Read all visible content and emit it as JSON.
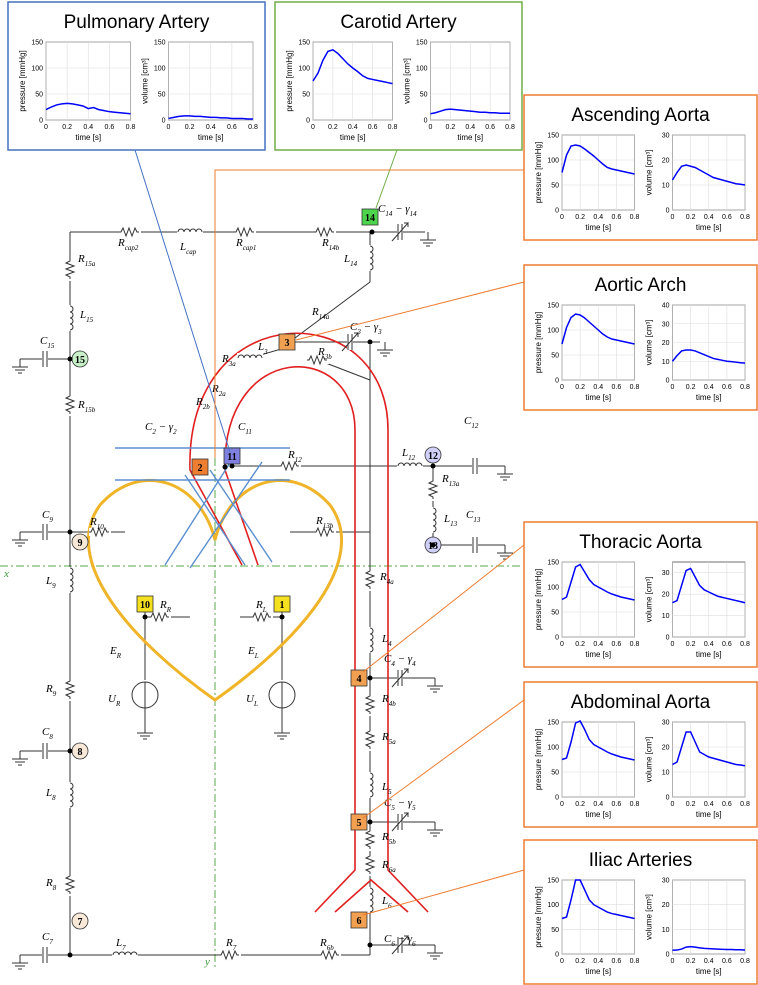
{
  "panels": [
    {
      "title": "Pulmonary Artery"
    },
    {
      "title": "Carotid Artery"
    },
    {
      "title": "Ascending Aorta"
    },
    {
      "title": "Aortic Arch"
    },
    {
      "title": "Thoracic Aorta"
    },
    {
      "title": "Abdominal Aorta"
    },
    {
      "title": "Iliac Arteries"
    }
  ],
  "chart_data": [
    {
      "type": "line",
      "xlabel": "time [s]",
      "ylabel": "pressure [mmHg]",
      "color": "#0000ff",
      "grid": true,
      "x": [
        0,
        0.05,
        0.1,
        0.15,
        0.2,
        0.25,
        0.3,
        0.35,
        0.4,
        0.45,
        0.5,
        0.55,
        0.6,
        0.65,
        0.7,
        0.75,
        0.8
      ],
      "values": [
        20,
        25,
        29,
        31,
        32,
        31,
        29,
        27,
        22,
        24,
        20,
        18,
        16,
        15,
        14,
        13,
        12
      ],
      "xlim": [
        0,
        0.8
      ],
      "ylim": [
        0,
        150
      ],
      "xticks": [
        0,
        0.2,
        0.4,
        0.6,
        0.8
      ],
      "yticks": [
        0,
        50,
        100,
        150
      ]
    },
    {
      "type": "line",
      "xlabel": "time [s]",
      "ylabel": "volume [cm³]",
      "color": "#0000ff",
      "grid": true,
      "x": [
        0,
        0.05,
        0.1,
        0.15,
        0.2,
        0.25,
        0.3,
        0.35,
        0.4,
        0.45,
        0.5,
        0.55,
        0.6,
        0.65,
        0.7,
        0.75,
        0.8
      ],
      "values": [
        3,
        5,
        7,
        8,
        8,
        7,
        7,
        6,
        5,
        5,
        4,
        4,
        3,
        3,
        3,
        2,
        2
      ],
      "xlim": [
        0,
        0.8
      ],
      "ylim": [
        0,
        150
      ],
      "xticks": [
        0,
        0.2,
        0.4,
        0.6,
        0.8
      ],
      "yticks": [
        0,
        50,
        100,
        150
      ]
    },
    {
      "type": "line",
      "xlabel": "time [s]",
      "ylabel": "pressure [mmHg]",
      "color": "#0000ff",
      "grid": true,
      "x": [
        0,
        0.05,
        0.1,
        0.15,
        0.2,
        0.25,
        0.3,
        0.35,
        0.4,
        0.45,
        0.5,
        0.55,
        0.6,
        0.65,
        0.7,
        0.75,
        0.8
      ],
      "values": [
        75,
        90,
        115,
        132,
        135,
        128,
        118,
        108,
        100,
        93,
        85,
        80,
        78,
        76,
        74,
        72,
        70
      ],
      "xlim": [
        0,
        0.8
      ],
      "ylim": [
        0,
        150
      ],
      "xticks": [
        0,
        0.2,
        0.4,
        0.6,
        0.8
      ],
      "yticks": [
        0,
        50,
        100,
        150
      ]
    },
    {
      "type": "line",
      "xlabel": "time [s]",
      "ylabel": "volume [cm³]",
      "color": "#0000ff",
      "grid": true,
      "x": [
        0,
        0.05,
        0.1,
        0.15,
        0.2,
        0.25,
        0.3,
        0.35,
        0.4,
        0.45,
        0.5,
        0.55,
        0.6,
        0.65,
        0.7,
        0.75,
        0.8
      ],
      "values": [
        12,
        14,
        17,
        20,
        21,
        20,
        19,
        18,
        17,
        16,
        15,
        15,
        14,
        14,
        13,
        13,
        13
      ],
      "xlim": [
        0,
        0.8
      ],
      "ylim": [
        0,
        150
      ],
      "xticks": [
        0,
        0.2,
        0.4,
        0.6,
        0.8
      ],
      "yticks": [
        0,
        50,
        100,
        150
      ]
    },
    {
      "type": "line",
      "xlabel": "time [s]",
      "ylabel": "pressure [mmHg]",
      "color": "#0000ff",
      "grid": true,
      "x": [
        0,
        0.05,
        0.1,
        0.15,
        0.2,
        0.25,
        0.3,
        0.35,
        0.4,
        0.45,
        0.5,
        0.55,
        0.6,
        0.65,
        0.7,
        0.75,
        0.8
      ],
      "values": [
        75,
        110,
        128,
        130,
        128,
        122,
        115,
        108,
        100,
        92,
        85,
        82,
        80,
        78,
        76,
        74,
        72
      ],
      "xlim": [
        0,
        0.8
      ],
      "ylim": [
        0,
        150
      ],
      "xticks": [
        0,
        0.2,
        0.4,
        0.6,
        0.8
      ],
      "yticks": [
        0,
        50,
        100,
        150
      ]
    },
    {
      "type": "line",
      "xlabel": "time [s]",
      "ylabel": "volume [cm³]",
      "color": "#0000ff",
      "grid": true,
      "x": [
        0,
        0.05,
        0.1,
        0.15,
        0.2,
        0.25,
        0.3,
        0.35,
        0.4,
        0.45,
        0.5,
        0.55,
        0.6,
        0.65,
        0.7,
        0.75,
        0.8
      ],
      "values": [
        12,
        15,
        17.5,
        18,
        17.5,
        17,
        16,
        15,
        14,
        13,
        12.5,
        12,
        11.5,
        11,
        10.5,
        10.3,
        10
      ],
      "xlim": [
        0,
        0.8
      ],
      "ylim": [
        0,
        30
      ],
      "xticks": [
        0,
        0.2,
        0.4,
        0.6,
        0.8
      ],
      "yticks": [
        0,
        10,
        20,
        30
      ]
    },
    {
      "type": "line",
      "xlabel": "time [s]",
      "ylabel": "pressure [mmHg]",
      "color": "#0000ff",
      "grid": true,
      "x": [
        0,
        0.05,
        0.1,
        0.15,
        0.2,
        0.25,
        0.3,
        0.35,
        0.4,
        0.45,
        0.5,
        0.55,
        0.6,
        0.65,
        0.7,
        0.75,
        0.8
      ],
      "values": [
        72,
        105,
        125,
        132,
        130,
        124,
        116,
        108,
        100,
        92,
        86,
        82,
        80,
        78,
        76,
        74,
        72
      ],
      "xlim": [
        0,
        0.8
      ],
      "ylim": [
        0,
        150
      ],
      "xticks": [
        0,
        0.2,
        0.4,
        0.6,
        0.8
      ],
      "yticks": [
        0,
        50,
        100,
        150
      ]
    },
    {
      "type": "line",
      "xlabel": "time [s]",
      "ylabel": "volume [cm³]",
      "color": "#0000ff",
      "grid": true,
      "x": [
        0,
        0.05,
        0.1,
        0.15,
        0.2,
        0.25,
        0.3,
        0.35,
        0.4,
        0.45,
        0.5,
        0.55,
        0.6,
        0.65,
        0.7,
        0.75,
        0.8
      ],
      "values": [
        10,
        13,
        15.5,
        16,
        16,
        15.5,
        14.5,
        13.5,
        12.5,
        11.5,
        11,
        10.5,
        10,
        9.8,
        9.5,
        9.2,
        9
      ],
      "xlim": [
        0,
        0.8
      ],
      "ylim": [
        0,
        40
      ],
      "xticks": [
        0,
        0.2,
        0.4,
        0.6,
        0.8
      ],
      "yticks": [
        0,
        10,
        20,
        30,
        40
      ]
    },
    {
      "type": "line",
      "xlabel": "time [s]",
      "ylabel": "pressure [mmHg]",
      "color": "#0000ff",
      "grid": true,
      "x": [
        0,
        0.05,
        0.1,
        0.15,
        0.2,
        0.25,
        0.3,
        0.35,
        0.4,
        0.45,
        0.5,
        0.55,
        0.6,
        0.65,
        0.7,
        0.75,
        0.8
      ],
      "values": [
        75,
        80,
        110,
        140,
        145,
        130,
        115,
        105,
        100,
        95,
        90,
        86,
        83,
        80,
        78,
        76,
        74
      ],
      "xlim": [
        0,
        0.8
      ],
      "ylim": [
        0,
        150
      ],
      "xticks": [
        0,
        0.2,
        0.4,
        0.6,
        0.8
      ],
      "yticks": [
        0,
        50,
        100,
        150
      ]
    },
    {
      "type": "line",
      "xlabel": "time [s]",
      "ylabel": "volume [cm³]",
      "color": "#0000ff",
      "grid": true,
      "x": [
        0,
        0.05,
        0.1,
        0.15,
        0.2,
        0.25,
        0.3,
        0.35,
        0.4,
        0.45,
        0.5,
        0.55,
        0.6,
        0.65,
        0.7,
        0.75,
        0.8
      ],
      "values": [
        16,
        17,
        24,
        31,
        32,
        28,
        24,
        22,
        21,
        20,
        19,
        18.5,
        18,
        17.5,
        17,
        16.5,
        16
      ],
      "xlim": [
        0,
        0.8
      ],
      "ylim": [
        0,
        35
      ],
      "xticks": [
        0,
        0.2,
        0.4,
        0.6,
        0.8
      ],
      "yticks": [
        0,
        10,
        20,
        30
      ]
    },
    {
      "type": "line",
      "xlabel": "time [s]",
      "ylabel": "pressure [mmHg]",
      "color": "#0000ff",
      "grid": true,
      "x": [
        0,
        0.05,
        0.1,
        0.15,
        0.2,
        0.25,
        0.3,
        0.35,
        0.4,
        0.45,
        0.5,
        0.55,
        0.6,
        0.65,
        0.7,
        0.75,
        0.8
      ],
      "values": [
        75,
        78,
        110,
        148,
        152,
        135,
        115,
        105,
        100,
        95,
        90,
        86,
        83,
        80,
        78,
        76,
        74
      ],
      "xlim": [
        0,
        0.8
      ],
      "ylim": [
        0,
        150
      ],
      "xticks": [
        0,
        0.2,
        0.4,
        0.6,
        0.8
      ],
      "yticks": [
        0,
        50,
        100,
        150
      ]
    },
    {
      "type": "line",
      "xlabel": "time [s]",
      "ylabel": "volume [cm³]",
      "color": "#0000ff",
      "grid": true,
      "x": [
        0,
        0.05,
        0.1,
        0.15,
        0.2,
        0.25,
        0.3,
        0.35,
        0.4,
        0.45,
        0.5,
        0.55,
        0.6,
        0.65,
        0.7,
        0.75,
        0.8
      ],
      "values": [
        13,
        14,
        20,
        26,
        26,
        22,
        18,
        17,
        16,
        15.5,
        15,
        14.5,
        14,
        13.5,
        13,
        12.8,
        12.5
      ],
      "xlim": [
        0,
        0.8
      ],
      "ylim": [
        0,
        30
      ],
      "xticks": [
        0,
        0.2,
        0.4,
        0.6,
        0.8
      ],
      "yticks": [
        0,
        10,
        20,
        30
      ]
    },
    {
      "type": "line",
      "xlabel": "time [s]",
      "ylabel": "pressure [mmHg]",
      "color": "#0000ff",
      "grid": true,
      "x": [
        0,
        0.05,
        0.1,
        0.15,
        0.2,
        0.25,
        0.3,
        0.35,
        0.4,
        0.45,
        0.5,
        0.55,
        0.6,
        0.65,
        0.7,
        0.75,
        0.8
      ],
      "values": [
        72,
        75,
        110,
        150,
        150,
        130,
        110,
        100,
        95,
        90,
        85,
        82,
        80,
        78,
        76,
        74,
        72
      ],
      "xlim": [
        0,
        0.8
      ],
      "ylim": [
        0,
        150
      ],
      "xticks": [
        0,
        0.2,
        0.4,
        0.6,
        0.8
      ],
      "yticks": [
        0,
        50,
        100,
        150
      ]
    },
    {
      "type": "line",
      "xlabel": "time [s]",
      "ylabel": "volume [cm³]",
      "color": "#0000ff",
      "grid": true,
      "x": [
        0,
        0.05,
        0.1,
        0.15,
        0.2,
        0.25,
        0.3,
        0.35,
        0.4,
        0.45,
        0.5,
        0.55,
        0.6,
        0.65,
        0.7,
        0.75,
        0.8
      ],
      "values": [
        1.5,
        1.6,
        2,
        2.8,
        3,
        2.8,
        2.5,
        2.3,
        2.2,
        2.1,
        2,
        1.9,
        1.8,
        1.8,
        1.7,
        1.7,
        1.6
      ],
      "xlim": [
        0,
        0.8
      ],
      "ylim": [
        0,
        30
      ],
      "xticks": [
        0,
        0.2,
        0.4,
        0.6,
        0.8
      ],
      "yticks": [
        0,
        10,
        20,
        30
      ]
    }
  ],
  "components": [
    [
      "R",
      "cap2"
    ],
    [
      "L",
      "cap"
    ],
    [
      "R",
      "cap1"
    ],
    [
      "R",
      "14b"
    ],
    [
      "C",
      "14",
      " − γ",
      "14"
    ],
    [
      "L",
      "14"
    ],
    [
      "R",
      "15a"
    ],
    [
      "L",
      "15"
    ],
    [
      "C",
      "15"
    ],
    [
      "R",
      "15b"
    ],
    [
      "R",
      "14a"
    ],
    [
      "C",
      "3",
      " − γ",
      "3"
    ],
    [
      "L",
      "3"
    ],
    [
      "R",
      "3a"
    ],
    [
      "R",
      "3b"
    ],
    [
      "R",
      "2a"
    ],
    [
      "R",
      "2b"
    ],
    [
      "C",
      "2",
      " − γ",
      "2"
    ],
    [
      "C",
      "11"
    ],
    [
      "R",
      "12"
    ],
    [
      "L",
      "12"
    ],
    [
      "C",
      "12"
    ],
    [
      "R",
      "13a"
    ],
    [
      "L",
      "13"
    ],
    [
      "C",
      "13"
    ],
    [
      "R",
      "13b"
    ],
    [
      "C",
      "9"
    ],
    [
      "R",
      "10"
    ],
    [
      "L",
      "9"
    ],
    [
      "R",
      "4a"
    ],
    [
      "R",
      "R"
    ],
    [
      "R",
      "L"
    ],
    [
      "E",
      "R"
    ],
    [
      "E",
      "L"
    ],
    [
      "U",
      "R"
    ],
    [
      "U",
      "L"
    ],
    [
      "L",
      "4"
    ],
    [
      "C",
      "4",
      " − γ",
      "4"
    ],
    [
      "R",
      "4b"
    ],
    [
      "R",
      "5a"
    ],
    [
      "R",
      "9"
    ],
    [
      "C",
      "8"
    ],
    [
      "L",
      "8"
    ],
    [
      "L",
      "5"
    ],
    [
      "C",
      "5",
      " − γ",
      "5"
    ],
    [
      "R",
      "5b"
    ],
    [
      "R",
      "6a"
    ],
    [
      "R",
      "8"
    ],
    [
      "L",
      "6"
    ],
    [
      "L",
      "7"
    ],
    [
      "R",
      "7"
    ],
    [
      "R",
      "6b"
    ],
    [
      "C",
      "7"
    ],
    [
      "C",
      "6",
      " − γ",
      "6"
    ]
  ],
  "nodes": [
    {
      "label": "14"
    },
    {
      "label": "3"
    },
    {
      "label": "2"
    },
    {
      "label": "11"
    },
    {
      "label": "10"
    },
    {
      "label": "1"
    },
    {
      "label": "4"
    },
    {
      "label": "5"
    },
    {
      "label": "6"
    },
    {
      "label": "15"
    },
    {
      "label": "9"
    },
    {
      "label": "8"
    },
    {
      "label": "7"
    },
    {
      "label": "12"
    },
    {
      "label": "13"
    }
  ],
  "axes": {
    "x": "x",
    "y": "y"
  }
}
